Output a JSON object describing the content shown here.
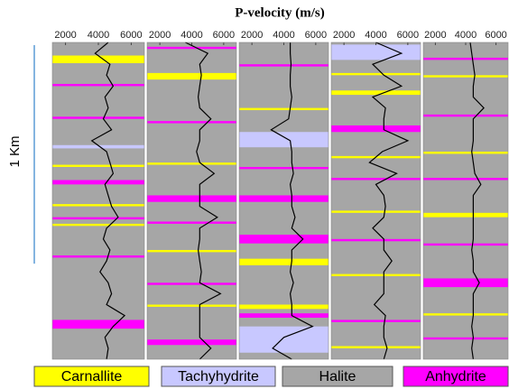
{
  "title": "P-velocity (m/s)",
  "scale_bar": {
    "label": "1 Km",
    "length": 1
  },
  "background_color": "#a6a6a6",
  "legend": [
    {
      "name": "Carnallite",
      "color": "#ffff00"
    },
    {
      "name": "Tachyhydrite",
      "color": "#c8c8ff"
    },
    {
      "name": "Halite",
      "color": "#a6a6a6"
    },
    {
      "name": "Anhydrite",
      "color": "#ff00ff"
    }
  ],
  "chart_data": [
    {
      "type": "line",
      "xlim": [
        1200,
        6800
      ],
      "xticks": [
        2000,
        4000,
        6000
      ],
      "ylim": [
        0,
        1.45
      ],
      "color": "#000000",
      "depth": [
        0,
        0.05,
        0.1,
        0.15,
        0.2,
        0.25,
        0.3,
        0.35,
        0.4,
        0.45,
        0.5,
        0.55,
        0.6,
        0.65,
        0.7,
        0.75,
        0.8,
        0.85,
        0.9,
        0.95,
        1.0,
        1.05,
        1.1,
        1.15,
        1.2,
        1.25,
        1.3,
        1.35,
        1.4,
        1.45
      ],
      "values": [
        4600,
        3800,
        4700,
        4500,
        4900,
        4400,
        4600,
        4300,
        4800,
        3600,
        4500,
        4700,
        4900,
        4400,
        4600,
        4800,
        5200,
        4500,
        4300,
        4700,
        4500,
        4100,
        4600,
        4800,
        4500,
        5600,
        4900,
        4400,
        4600,
        4500
      ],
      "layers": [
        {
          "top": 0.06,
          "bottom": 0.095,
          "color": "#ffff00"
        },
        {
          "top": 0.19,
          "bottom": 0.2,
          "color": "#ff00ff"
        },
        {
          "top": 0.34,
          "bottom": 0.35,
          "color": "#ff00ff"
        },
        {
          "top": 0.47,
          "bottom": 0.485,
          "color": "#c8c8ff"
        },
        {
          "top": 0.56,
          "bottom": 0.57,
          "color": "#ffff00"
        },
        {
          "top": 0.63,
          "bottom": 0.65,
          "color": "#ff00ff"
        },
        {
          "top": 0.74,
          "bottom": 0.75,
          "color": "#ffff00"
        },
        {
          "top": 0.8,
          "bottom": 0.81,
          "color": "#ff00ff"
        },
        {
          "top": 0.83,
          "bottom": 0.84,
          "color": "#ffff00"
        },
        {
          "top": 0.975,
          "bottom": 0.985,
          "color": "#ff00ff"
        },
        {
          "top": 1.27,
          "bottom": 1.31,
          "color": "#ff00ff"
        }
      ]
    },
    {
      "type": "line",
      "xlim": [
        1200,
        6800
      ],
      "xticks": [
        2000,
        4000,
        6000
      ],
      "ylim": [
        0,
        1.45
      ],
      "color": "#000000",
      "depth": [
        0,
        0.05,
        0.1,
        0.15,
        0.2,
        0.25,
        0.3,
        0.35,
        0.4,
        0.45,
        0.5,
        0.55,
        0.6,
        0.65,
        0.7,
        0.75,
        0.8,
        0.85,
        0.9,
        0.95,
        1.0,
        1.05,
        1.1,
        1.15,
        1.2,
        1.25,
        1.3,
        1.35,
        1.4,
        1.45
      ],
      "values": [
        3600,
        5000,
        4500,
        4600,
        4500,
        4400,
        4500,
        5200,
        4500,
        4500,
        4300,
        4500,
        5400,
        4500,
        4500,
        4500,
        5600,
        4500,
        4500,
        4400,
        4500,
        4600,
        4500,
        5800,
        4500,
        4500,
        4500,
        4500,
        5200,
        4500
      ],
      "layers": [
        {
          "top": 0.02,
          "bottom": 0.03,
          "color": "#ff00ff"
        },
        {
          "top": 0.14,
          "bottom": 0.17,
          "color": "#ffff00"
        },
        {
          "top": 0.36,
          "bottom": 0.37,
          "color": "#ff00ff"
        },
        {
          "top": 0.55,
          "bottom": 0.56,
          "color": "#ffff00"
        },
        {
          "top": 0.7,
          "bottom": 0.73,
          "color": "#ff00ff"
        },
        {
          "top": 0.82,
          "bottom": 0.83,
          "color": "#ff00ff"
        },
        {
          "top": 0.95,
          "bottom": 0.96,
          "color": "#ffff00"
        },
        {
          "top": 1.1,
          "bottom": 1.11,
          "color": "#ff00ff"
        },
        {
          "top": 1.2,
          "bottom": 1.21,
          "color": "#ffff00"
        },
        {
          "top": 1.36,
          "bottom": 1.385,
          "color": "#ff00ff"
        }
      ]
    },
    {
      "type": "line",
      "xlim": [
        1200,
        6800
      ],
      "xticks": [
        2000,
        4000,
        6000
      ],
      "ylim": [
        0,
        1.45
      ],
      "color": "#000000",
      "depth": [
        0,
        0.05,
        0.1,
        0.15,
        0.2,
        0.25,
        0.3,
        0.35,
        0.4,
        0.45,
        0.5,
        0.55,
        0.6,
        0.65,
        0.7,
        0.75,
        0.8,
        0.85,
        0.9,
        0.95,
        1.0,
        1.05,
        1.1,
        1.15,
        1.2,
        1.25,
        1.3,
        1.35,
        1.4,
        1.45
      ],
      "values": [
        4400,
        4400,
        4450,
        4400,
        4400,
        4500,
        4400,
        4300,
        3200,
        4400,
        4500,
        4500,
        4600,
        4400,
        4500,
        4500,
        4700,
        4500,
        5200,
        4500,
        4500,
        4400,
        4600,
        4400,
        4500,
        4500,
        5800,
        4000,
        3300,
        4500
      ],
      "layers": [
        {
          "top": 0.1,
          "bottom": 0.11,
          "color": "#ff00ff"
        },
        {
          "top": 0.3,
          "bottom": 0.31,
          "color": "#ffff00"
        },
        {
          "top": 0.41,
          "bottom": 0.48,
          "color": "#c8c8ff"
        },
        {
          "top": 0.57,
          "bottom": 0.58,
          "color": "#ff00ff"
        },
        {
          "top": 0.7,
          "bottom": 0.73,
          "color": "#ff00ff"
        },
        {
          "top": 0.88,
          "bottom": 0.92,
          "color": "#ff00ff"
        },
        {
          "top": 0.99,
          "bottom": 1.02,
          "color": "#ffff00"
        },
        {
          "top": 1.2,
          "bottom": 1.22,
          "color": "#ffff00"
        },
        {
          "top": 1.24,
          "bottom": 1.26,
          "color": "#ff00ff"
        },
        {
          "top": 1.3,
          "bottom": 1.42,
          "color": "#c8c8ff"
        }
      ]
    },
    {
      "type": "line",
      "xlim": [
        1200,
        6800
      ],
      "xticks": [
        2000,
        4000,
        6000
      ],
      "ylim": [
        0,
        1.45
      ],
      "color": "#000000",
      "depth": [
        0,
        0.05,
        0.1,
        0.15,
        0.2,
        0.25,
        0.3,
        0.35,
        0.4,
        0.45,
        0.5,
        0.55,
        0.6,
        0.65,
        0.7,
        0.75,
        0.8,
        0.85,
        0.9,
        0.95,
        1.0,
        1.05,
        1.1,
        1.15,
        1.2,
        1.25,
        1.3,
        1.35,
        1.4,
        1.45
      ],
      "values": [
        4000,
        5600,
        3800,
        4500,
        5600,
        3800,
        4600,
        4500,
        4500,
        6000,
        4400,
        3600,
        5300,
        4000,
        4500,
        4600,
        4500,
        3800,
        4500,
        4500,
        5000,
        4500,
        4500,
        4500,
        3900,
        4600,
        4500,
        4500,
        4700,
        4500
      ],
      "layers": [
        {
          "top": 0.01,
          "bottom": 0.08,
          "color": "#c8c8ff"
        },
        {
          "top": 0.14,
          "bottom": 0.15,
          "color": "#ffff00"
        },
        {
          "top": 0.22,
          "bottom": 0.24,
          "color": "#ffff00"
        },
        {
          "top": 0.38,
          "bottom": 0.41,
          "color": "#ff00ff"
        },
        {
          "top": 0.52,
          "bottom": 0.53,
          "color": "#ffff00"
        },
        {
          "top": 0.62,
          "bottom": 0.63,
          "color": "#ff00ff"
        },
        {
          "top": 0.77,
          "bottom": 0.78,
          "color": "#ffff00"
        },
        {
          "top": 0.9,
          "bottom": 0.91,
          "color": "#ff00ff"
        },
        {
          "top": 1.06,
          "bottom": 1.07,
          "color": "#ffff00"
        },
        {
          "top": 1.27,
          "bottom": 1.28,
          "color": "#ff00ff"
        },
        {
          "top": 1.39,
          "bottom": 1.4,
          "color": "#ffff00"
        }
      ]
    },
    {
      "type": "line",
      "xlim": [
        1200,
        6800
      ],
      "xticks": [
        2000,
        4000,
        6000
      ],
      "ylim": [
        0,
        1.45
      ],
      "color": "#000000",
      "depth": [
        0,
        0.05,
        0.1,
        0.15,
        0.2,
        0.25,
        0.3,
        0.35,
        0.4,
        0.45,
        0.5,
        0.55,
        0.6,
        0.65,
        0.7,
        0.75,
        0.8,
        0.85,
        0.9,
        0.95,
        1.0,
        1.05,
        1.1,
        1.15,
        1.2,
        1.25,
        1.3,
        1.35,
        1.4,
        1.45
      ],
      "values": [
        4300,
        4400,
        4500,
        4600,
        4500,
        4500,
        5200,
        4500,
        4500,
        4500,
        4400,
        4500,
        4600,
        5000,
        4500,
        4500,
        4500,
        4500,
        4500,
        4400,
        4500,
        4500,
        4900,
        4500,
        4500,
        4500,
        4400,
        4500,
        4400,
        4500
      ],
      "layers": [
        {
          "top": 0.07,
          "bottom": 0.08,
          "color": "#ff00ff"
        },
        {
          "top": 0.15,
          "bottom": 0.16,
          "color": "#ffff00"
        },
        {
          "top": 0.33,
          "bottom": 0.34,
          "color": "#ff00ff"
        },
        {
          "top": 0.5,
          "bottom": 0.51,
          "color": "#ffff00"
        },
        {
          "top": 0.62,
          "bottom": 0.63,
          "color": "#ff00ff"
        },
        {
          "top": 0.78,
          "bottom": 0.8,
          "color": "#ffff00"
        },
        {
          "top": 0.92,
          "bottom": 0.93,
          "color": "#ff00ff"
        },
        {
          "top": 1.08,
          "bottom": 1.12,
          "color": "#ff00ff"
        },
        {
          "top": 1.24,
          "bottom": 1.25,
          "color": "#ffff00"
        },
        {
          "top": 1.35,
          "bottom": 1.36,
          "color": "#ff00ff"
        }
      ]
    }
  ]
}
